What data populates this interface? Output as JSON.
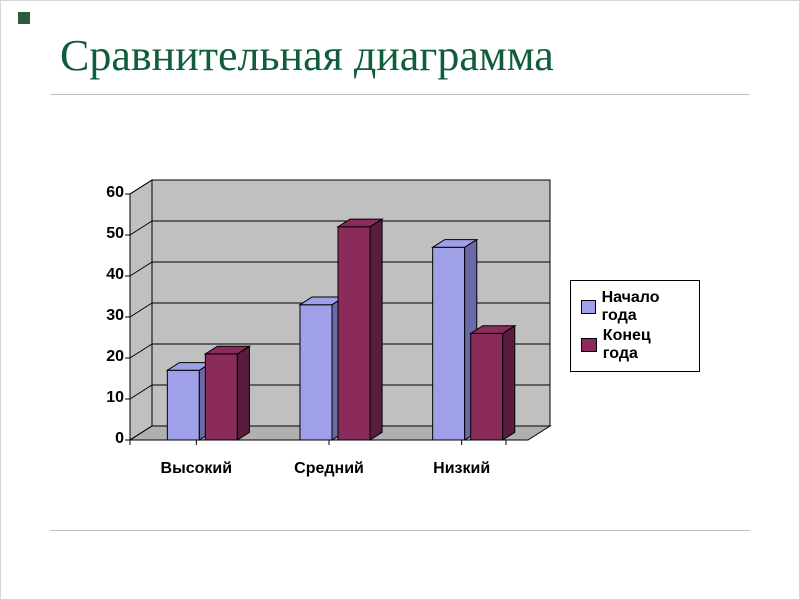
{
  "title": "Сравнительная диаграмма",
  "title_color": "#0f5d3a",
  "title_fontsize": 44,
  "chart": {
    "type": "bar3d",
    "categories": [
      "Высокий",
      "Средний",
      "Низкий"
    ],
    "series": [
      {
        "name": "Начало года",
        "color": "#a0a0e8",
        "color_dark": "#6a6aa8",
        "values": [
          17,
          33,
          47
        ]
      },
      {
        "name": "Конец года",
        "color": "#8b2b5c",
        "color_dark": "#5a1c3c",
        "values": [
          21,
          52,
          26
        ]
      }
    ],
    "ymin": 0,
    "ymax": 60,
    "ytick_step": 10,
    "axis_fontsize": 16,
    "wall_color": "#c0c0c0",
    "floor_color": "#b0b0b0",
    "grid_color": "#000000",
    "legend": {
      "items": [
        "Начало года",
        "Конец года"
      ],
      "swatch_colors": [
        "#a0a0e8",
        "#8b2b5c"
      ],
      "fontsize": 16,
      "border_color": "#000000"
    }
  }
}
